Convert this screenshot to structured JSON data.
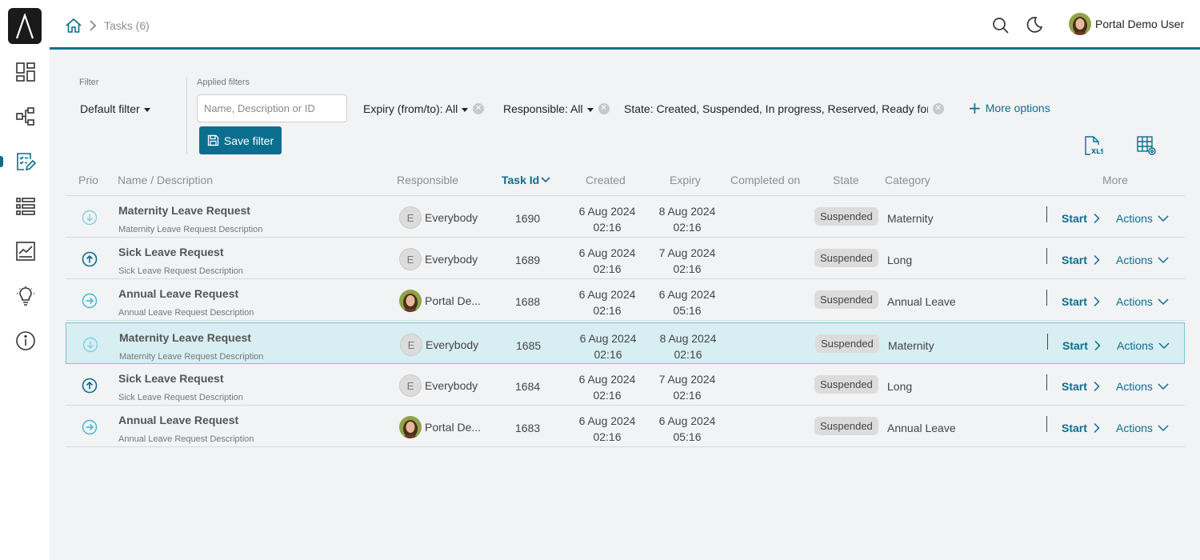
{
  "sidebar": {
    "logo": "logo-icon",
    "items": [
      {
        "name": "dashboard-icon"
      },
      {
        "name": "processes-icon"
      },
      {
        "name": "tasks-icon",
        "active": true
      },
      {
        "name": "cases-icon"
      },
      {
        "name": "statistics-icon"
      },
      {
        "name": "lightbulb-icon"
      },
      {
        "name": "info-icon"
      }
    ]
  },
  "header": {
    "breadcrumb": "Tasks (6)",
    "user_name": "Portal Demo User"
  },
  "filter": {
    "label": "Filter",
    "default_filter": "Default filter",
    "applied_label": "Applied filters",
    "search_placeholder": "Name, Description or ID",
    "chips": {
      "expiry": "Expiry (from/to): All",
      "responsible": "Responsible: All",
      "state": "State: Created, Suspended, In progress, Reserved, Ready for jo"
    },
    "more_options": "More options",
    "save_filter": "Save filter"
  },
  "table": {
    "columns": {
      "prio": "Prio",
      "name": "Name / Description",
      "responsible": "Responsible",
      "task_id": "Task Id",
      "created": "Created",
      "expiry": "Expiry",
      "completed": "Completed on",
      "state": "State",
      "category": "Category",
      "more": "More"
    },
    "start_label": "Start",
    "actions_label": "Actions",
    "rows": [
      {
        "prio": "low",
        "name": "Maternity Leave Request",
        "desc": "Maternity Leave Request Description",
        "resp_type": "group",
        "resp_initial": "E",
        "responsible": "Everybody",
        "id": "1690",
        "created_date": "6 Aug 2024",
        "created_time": "02:16",
        "expiry_date": "8 Aug 2024",
        "expiry_time": "02:16",
        "state": "Suspended",
        "category": "Maternity"
      },
      {
        "prio": "high",
        "name": "Sick Leave Request",
        "desc": "Sick Leave Request Description",
        "resp_type": "group",
        "resp_initial": "E",
        "responsible": "Everybody",
        "id": "1689",
        "created_date": "6 Aug 2024",
        "created_time": "02:16",
        "expiry_date": "7 Aug 2024",
        "expiry_time": "02:16",
        "state": "Suspended",
        "category": "Long"
      },
      {
        "prio": "normal",
        "name": "Annual Leave Request",
        "desc": "Annual Leave Request Description",
        "resp_type": "user",
        "resp_initial": "",
        "responsible": "Portal De...",
        "id": "1688",
        "created_date": "6 Aug 2024",
        "created_time": "02:16",
        "expiry_date": "6 Aug 2024",
        "expiry_time": "05:16",
        "state": "Suspended",
        "category": "Annual Leave"
      },
      {
        "prio": "low",
        "name": "Maternity Leave Request",
        "desc": "Maternity Leave Request Description",
        "resp_type": "group",
        "resp_initial": "E",
        "responsible": "Everybody",
        "id": "1685",
        "created_date": "6 Aug 2024",
        "created_time": "02:16",
        "expiry_date": "8 Aug 2024",
        "expiry_time": "02:16",
        "state": "Suspended",
        "category": "Maternity",
        "highlighted": true
      },
      {
        "prio": "high",
        "name": "Sick Leave Request",
        "desc": "Sick Leave Request Description",
        "resp_type": "group",
        "resp_initial": "E",
        "responsible": "Everybody",
        "id": "1684",
        "created_date": "6 Aug 2024",
        "created_time": "02:16",
        "expiry_date": "7 Aug 2024",
        "expiry_time": "02:16",
        "state": "Suspended",
        "category": "Long"
      },
      {
        "prio": "normal",
        "name": "Annual Leave Request",
        "desc": "Annual Leave Request Description",
        "resp_type": "user",
        "resp_initial": "",
        "responsible": "Portal De...",
        "id": "1683",
        "created_date": "6 Aug 2024",
        "created_time": "02:16",
        "expiry_date": "6 Aug 2024",
        "expiry_time": "05:16",
        "state": "Suspended",
        "category": "Annual Leave"
      }
    ]
  },
  "colors": {
    "accent": "#0b6e8f",
    "highlight_row": "#d7eef3",
    "prio_low": "#7fd0df",
    "prio_normal": "#3fb6cc",
    "prio_high": "#0b6e8f"
  }
}
